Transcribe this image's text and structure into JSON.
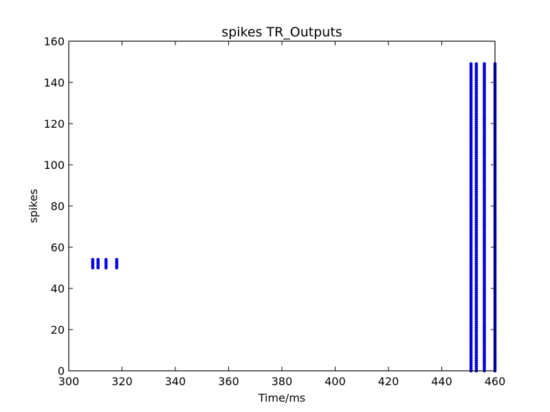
{
  "chart_data": {
    "type": "scatter",
    "title": "spikes TR_Outputs",
    "xlabel": "Time/ms",
    "ylabel": "spikes",
    "xlim": [
      300,
      460
    ],
    "ylim": [
      0,
      160
    ],
    "xticks": [
      300,
      320,
      340,
      360,
      380,
      400,
      420,
      440,
      460
    ],
    "yticks": [
      0,
      20,
      40,
      60,
      80,
      100,
      120,
      140,
      160
    ],
    "grid": false,
    "marker_color": "#0000ff",
    "series": [
      {
        "points_description_groups": [
          {
            "times": [
              309,
              311,
              314,
              318
            ],
            "neuron_ids": [
              50,
              51,
              52,
              53,
              54
            ]
          },
          {
            "times": [
              451,
              453,
              456,
              460
            ],
            "neuron_ids_range": [
              0,
              149
            ]
          }
        ]
      }
    ]
  }
}
